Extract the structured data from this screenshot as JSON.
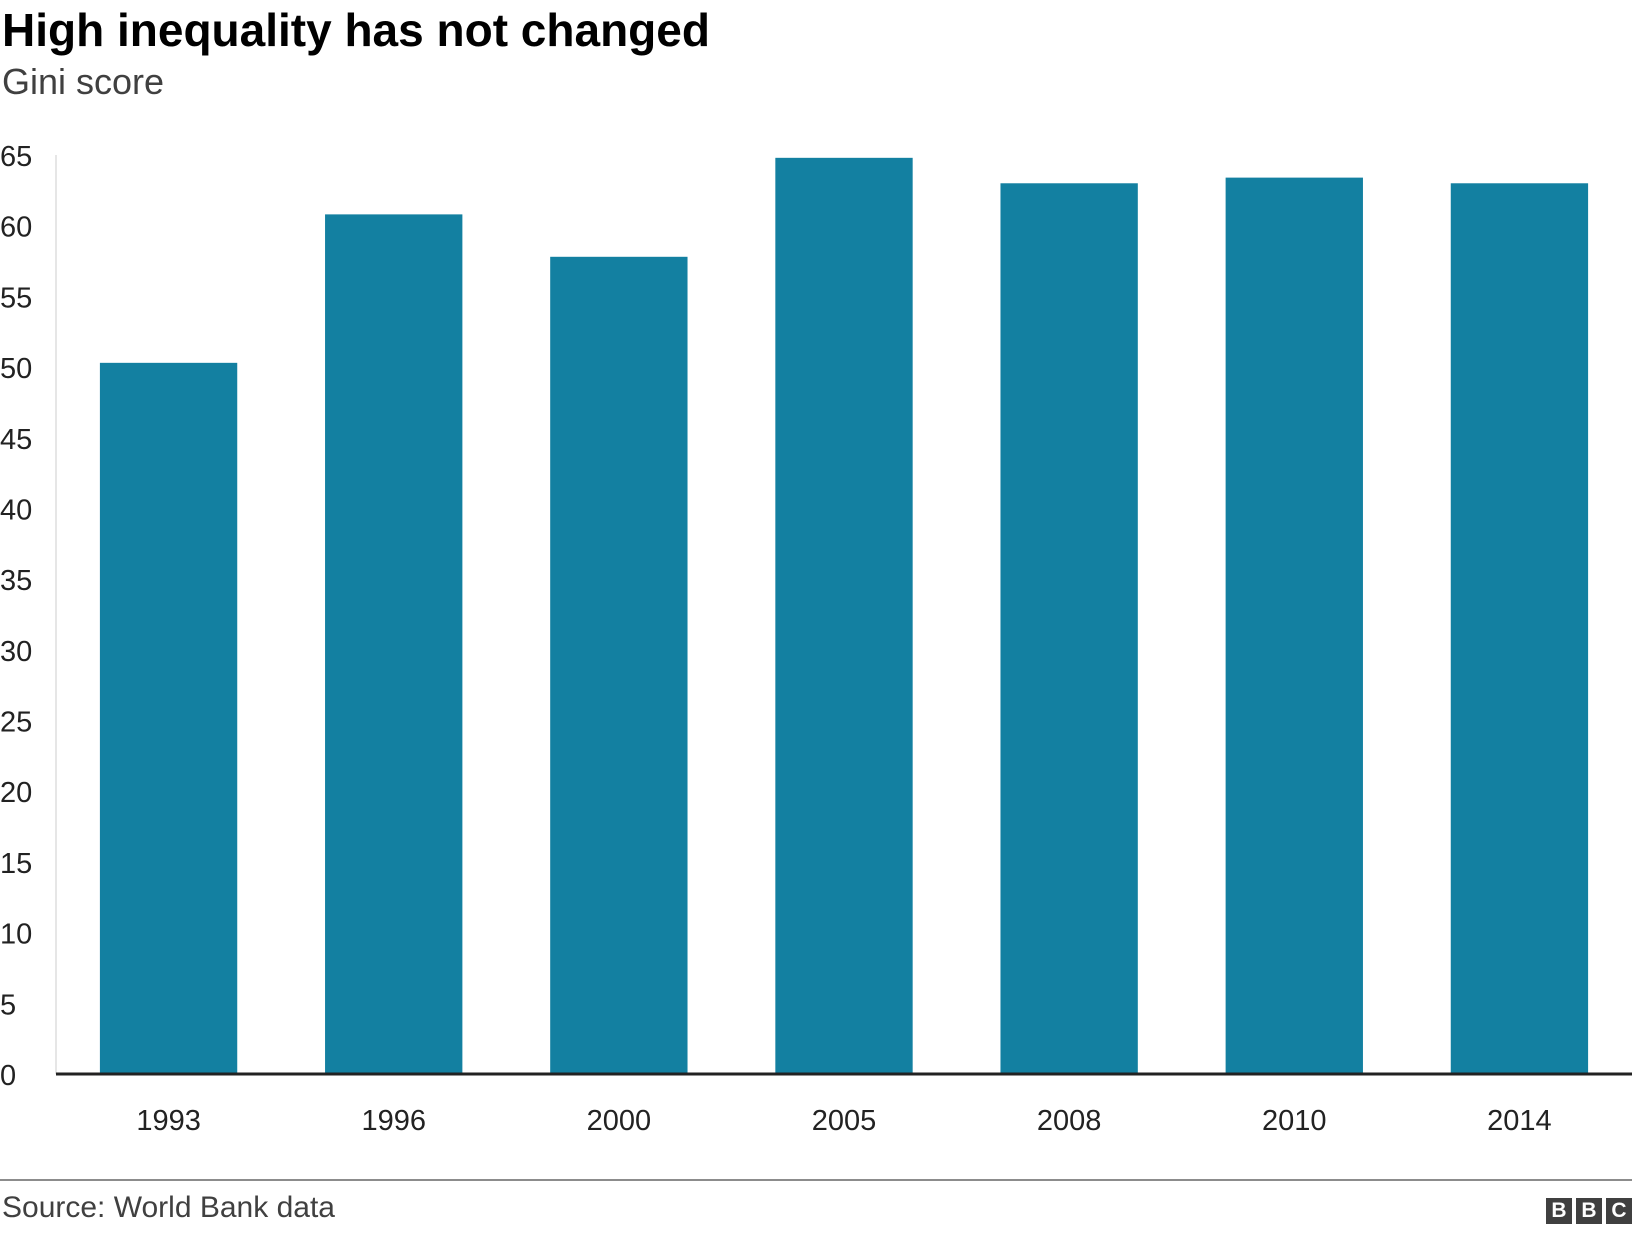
{
  "chart_data": {
    "type": "bar",
    "title": "High inequality has not changed",
    "subtitle": "Gini score",
    "categories": [
      "1993",
      "1996",
      "2000",
      "2005",
      "2008",
      "2010",
      "2014"
    ],
    "values": [
      50.3,
      60.8,
      57.8,
      64.8,
      63.0,
      63.4,
      63.0
    ],
    "ylim": [
      0,
      65
    ],
    "yticks": [
      0,
      5,
      10,
      15,
      20,
      25,
      30,
      35,
      40,
      45,
      50,
      55,
      60,
      65
    ],
    "bar_color": "#1380a1",
    "grid": false
  },
  "footer": {
    "source": "Source: World Bank data",
    "logo": [
      "B",
      "B",
      "C"
    ]
  }
}
